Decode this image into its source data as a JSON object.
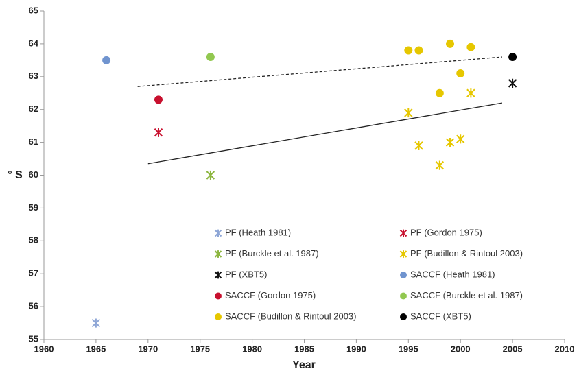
{
  "chart_data": {
    "type": "scatter",
    "x_label": "Year",
    "y_label": "° S",
    "xlim": [
      1960,
      2010
    ],
    "xticks": [
      1960,
      1965,
      1970,
      1975,
      1980,
      1985,
      1990,
      1995,
      2000,
      2005,
      2010
    ],
    "ylim": [
      55,
      65
    ],
    "yticks": [
      55,
      56,
      57,
      58,
      59,
      60,
      61,
      62,
      63,
      64,
      65
    ],
    "grid": false,
    "legend": "lower-center",
    "series": [
      {
        "name": "PF (Heath 1981)",
        "color": "#8ea6d6",
        "marker": "asterisk",
        "x": [
          1965
        ],
        "values": [
          55.5
        ]
      },
      {
        "name": "PF (Gordon 1975)",
        "color": "#c8102e",
        "marker": "asterisk",
        "x": [
          1971
        ],
        "values": [
          61.3
        ]
      },
      {
        "name": "PF (Burckle et al. 1987)",
        "color": "#8db640",
        "marker": "asterisk",
        "x": [
          1976
        ],
        "values": [
          60.0
        ]
      },
      {
        "name": "PF (Budillon & Rintoul 2003)",
        "color": "#e6c700",
        "marker": "asterisk",
        "x": [
          1995,
          1996,
          1998,
          1999,
          2000,
          2001
        ],
        "values": [
          61.9,
          60.9,
          60.3,
          61.0,
          61.1,
          62.5
        ]
      },
      {
        "name": "PF (XBT5)",
        "color": "#111111",
        "marker": "asterisk",
        "x": [
          2005
        ],
        "values": [
          62.8
        ]
      },
      {
        "name": "SACCF (Heath 1981)",
        "color": "#7094cf",
        "marker": "circle",
        "x": [
          1966
        ],
        "values": [
          63.5
        ]
      },
      {
        "name": "SACCF (Gordon 1975)",
        "color": "#c8102e",
        "marker": "circle",
        "x": [
          1971
        ],
        "values": [
          62.3
        ]
      },
      {
        "name": "SACCF (Burckle et al. 1987)",
        "color": "#92c850",
        "marker": "circle",
        "x": [
          1976
        ],
        "values": [
          63.6
        ]
      },
      {
        "name": "SACCF (Budillon & Rintoul 2003)",
        "color": "#e6c700",
        "marker": "circle",
        "x": [
          1995,
          1996,
          1998,
          1999,
          2000,
          2001
        ],
        "values": [
          63.8,
          63.8,
          62.5,
          64.0,
          63.1,
          63.9
        ]
      },
      {
        "name": "SACCF (XBT5)",
        "color": "#000000",
        "marker": "circle",
        "x": [
          2005
        ],
        "values": [
          63.6
        ]
      }
    ],
    "trendlines": [
      {
        "style": "dashed",
        "color": "#222222",
        "x": [
          1969,
          2004
        ],
        "values": [
          62.7,
          63.6
        ]
      },
      {
        "style": "solid",
        "color": "#222222",
        "x": [
          1970,
          2004
        ],
        "values": [
          60.35,
          62.2
        ]
      }
    ]
  }
}
